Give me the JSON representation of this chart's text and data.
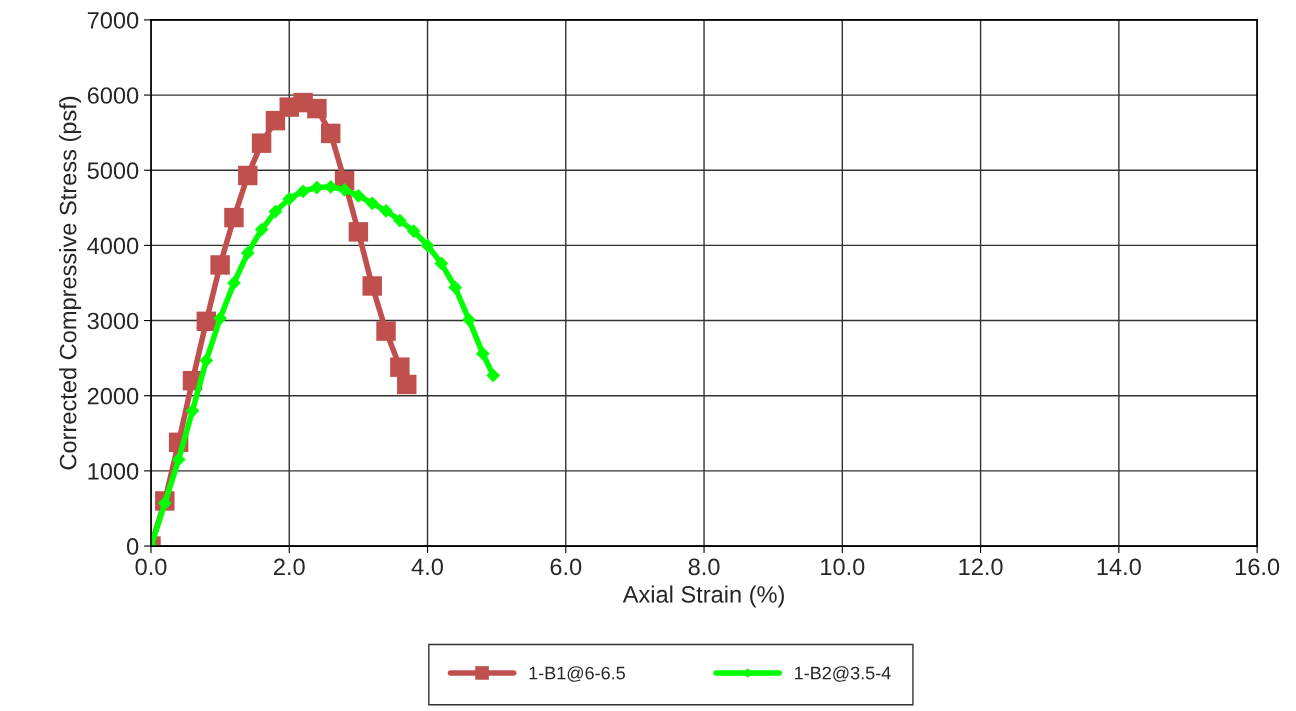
{
  "chart_data": {
    "type": "line",
    "xlabel": "Axial Strain (%)",
    "ylabel": "Corrected Compressive Stress (psf)",
    "xlim": [
      0,
      16
    ],
    "ylim": [
      0,
      7000
    ],
    "xticks": [
      {
        "value": 0,
        "label": "0.0"
      },
      {
        "value": 2,
        "label": "2.0"
      },
      {
        "value": 4,
        "label": "4.0"
      },
      {
        "value": 6,
        "label": "6.0"
      },
      {
        "value": 8,
        "label": "8.0"
      },
      {
        "value": 10,
        "label": "10.0"
      },
      {
        "value": 12,
        "label": "12.0"
      },
      {
        "value": 14,
        "label": "14.0"
      },
      {
        "value": 16,
        "label": "16.0"
      }
    ],
    "yticks": [
      0,
      1000,
      2000,
      3000,
      4000,
      5000,
      6000,
      7000
    ],
    "grid": true,
    "legend": "bottom",
    "line_style": "solid",
    "series": [
      {
        "name": "1-B1@6-6.5",
        "color": "#c0504d",
        "marker": "square",
        "x": [
          0,
          0.2,
          0.4,
          0.6,
          0.8,
          1.0,
          1.2,
          1.4,
          1.6,
          1.8,
          2.0,
          2.2,
          2.4,
          2.6,
          2.8,
          3.0,
          3.2,
          3.4,
          3.6,
          3.7
        ],
        "values": [
          0,
          600,
          1380,
          2200,
          2990,
          3740,
          4370,
          4930,
          5360,
          5660,
          5840,
          5900,
          5820,
          5490,
          4860,
          4180,
          3460,
          2860,
          2380,
          2150
        ]
      },
      {
        "name": "1-B2@3.5-4",
        "color": "#00ff00",
        "marker": "diamond",
        "x": [
          0,
          0.2,
          0.4,
          0.6,
          0.8,
          1.0,
          1.2,
          1.4,
          1.6,
          1.8,
          2.0,
          2.2,
          2.4,
          2.6,
          2.8,
          3.0,
          3.2,
          3.4,
          3.6,
          3.8,
          4.0,
          4.2,
          4.4,
          4.6,
          4.8,
          4.95
        ],
        "values": [
          0,
          570,
          1150,
          1800,
          2470,
          3030,
          3500,
          3900,
          4210,
          4450,
          4620,
          4720,
          4770,
          4780,
          4740,
          4660,
          4560,
          4460,
          4330,
          4190,
          4000,
          3760,
          3440,
          3010,
          2560,
          2270
        ]
      }
    ]
  }
}
